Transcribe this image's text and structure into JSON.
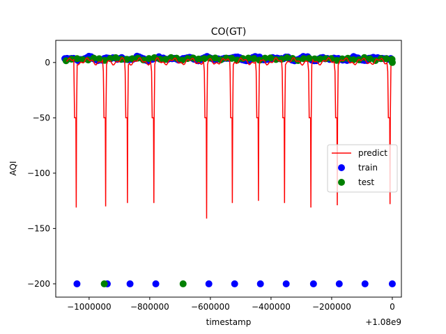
{
  "chart_data": {
    "type": "scatter",
    "title": "CO(GT)",
    "xlabel": "timestamp",
    "ylabel": "AQI",
    "x_offset_label": "+1.08e9",
    "xlim": [
      -1110000,
      30000
    ],
    "ylim": [
      -212,
      20
    ],
    "xticks": [
      {
        "value": -1000000,
        "label": "−1000000"
      },
      {
        "value": -800000,
        "label": "−800000"
      },
      {
        "value": -600000,
        "label": "−600000"
      },
      {
        "value": -400000,
        "label": "−400000"
      },
      {
        "value": -200000,
        "label": "−200000"
      },
      {
        "value": 0,
        "label": "0"
      }
    ],
    "yticks": [
      {
        "value": 0,
        "label": "0"
      },
      {
        "value": -50,
        "label": "−50"
      },
      {
        "value": -100,
        "label": "−100"
      },
      {
        "value": -150,
        "label": "−150"
      },
      {
        "value": -200,
        "label": "−200"
      }
    ],
    "grid": false,
    "legend": {
      "placement": "center-right",
      "entries": [
        {
          "label": "predict",
          "kind": "line",
          "color": "#ff0000"
        },
        {
          "label": "train",
          "kind": "marker",
          "color": "#0000ff"
        },
        {
          "label": "test",
          "kind": "marker",
          "color": "#008000"
        }
      ]
    },
    "series": [
      {
        "name": "predict",
        "kind": "line",
        "color": "#ff0000",
        "baseline_x_range": [
          -1075000,
          -2000
        ],
        "baseline_value": 1,
        "dips": [
          {
            "x": -1041000,
            "min": -131,
            "plateau": -50
          },
          {
            "x": -944000,
            "min": -130,
            "plateau": -50
          },
          {
            "x": -872000,
            "min": -127,
            "plateau": -50
          },
          {
            "x": -785000,
            "min": -127,
            "plateau": -50
          },
          {
            "x": -611000,
            "min": -141,
            "plateau": -50
          },
          {
            "x": -526000,
            "min": -127,
            "plateau": -50
          },
          {
            "x": -440000,
            "min": -125,
            "plateau": -50
          },
          {
            "x": -354000,
            "min": -127,
            "plateau": -50
          },
          {
            "x": -267000,
            "min": -131,
            "plateau": -50
          },
          {
            "x": -180000,
            "min": -129,
            "plateau": -50
          },
          {
            "x": -6000,
            "min": -128,
            "plateau": -50
          }
        ]
      },
      {
        "name": "train",
        "kind": "scatter",
        "color": "#0000ff",
        "band_x_range": [
          -1080000,
          -5000
        ],
        "band_values": [
          1,
          6
        ],
        "points": [
          {
            "x": -1040000,
            "y": -200
          },
          {
            "x": -940000,
            "y": -200
          },
          {
            "x": -865000,
            "y": -200
          },
          {
            "x": -780000,
            "y": -200
          },
          {
            "x": -605000,
            "y": -200
          },
          {
            "x": -520000,
            "y": -200
          },
          {
            "x": -435000,
            "y": -200
          },
          {
            "x": -350000,
            "y": -200
          },
          {
            "x": -260000,
            "y": -200
          },
          {
            "x": -175000,
            "y": -200
          },
          {
            "x": -90000,
            "y": -200
          },
          {
            "x": 0,
            "y": -200
          }
        ]
      },
      {
        "name": "test",
        "kind": "scatter",
        "color": "#008000",
        "band_x_range": [
          -1080000,
          -5000
        ],
        "band_values": [
          0,
          6
        ],
        "points": [
          {
            "x": -950000,
            "y": -200
          },
          {
            "x": -690000,
            "y": -200
          },
          {
            "x": 0,
            "y": 0
          }
        ]
      }
    ]
  }
}
